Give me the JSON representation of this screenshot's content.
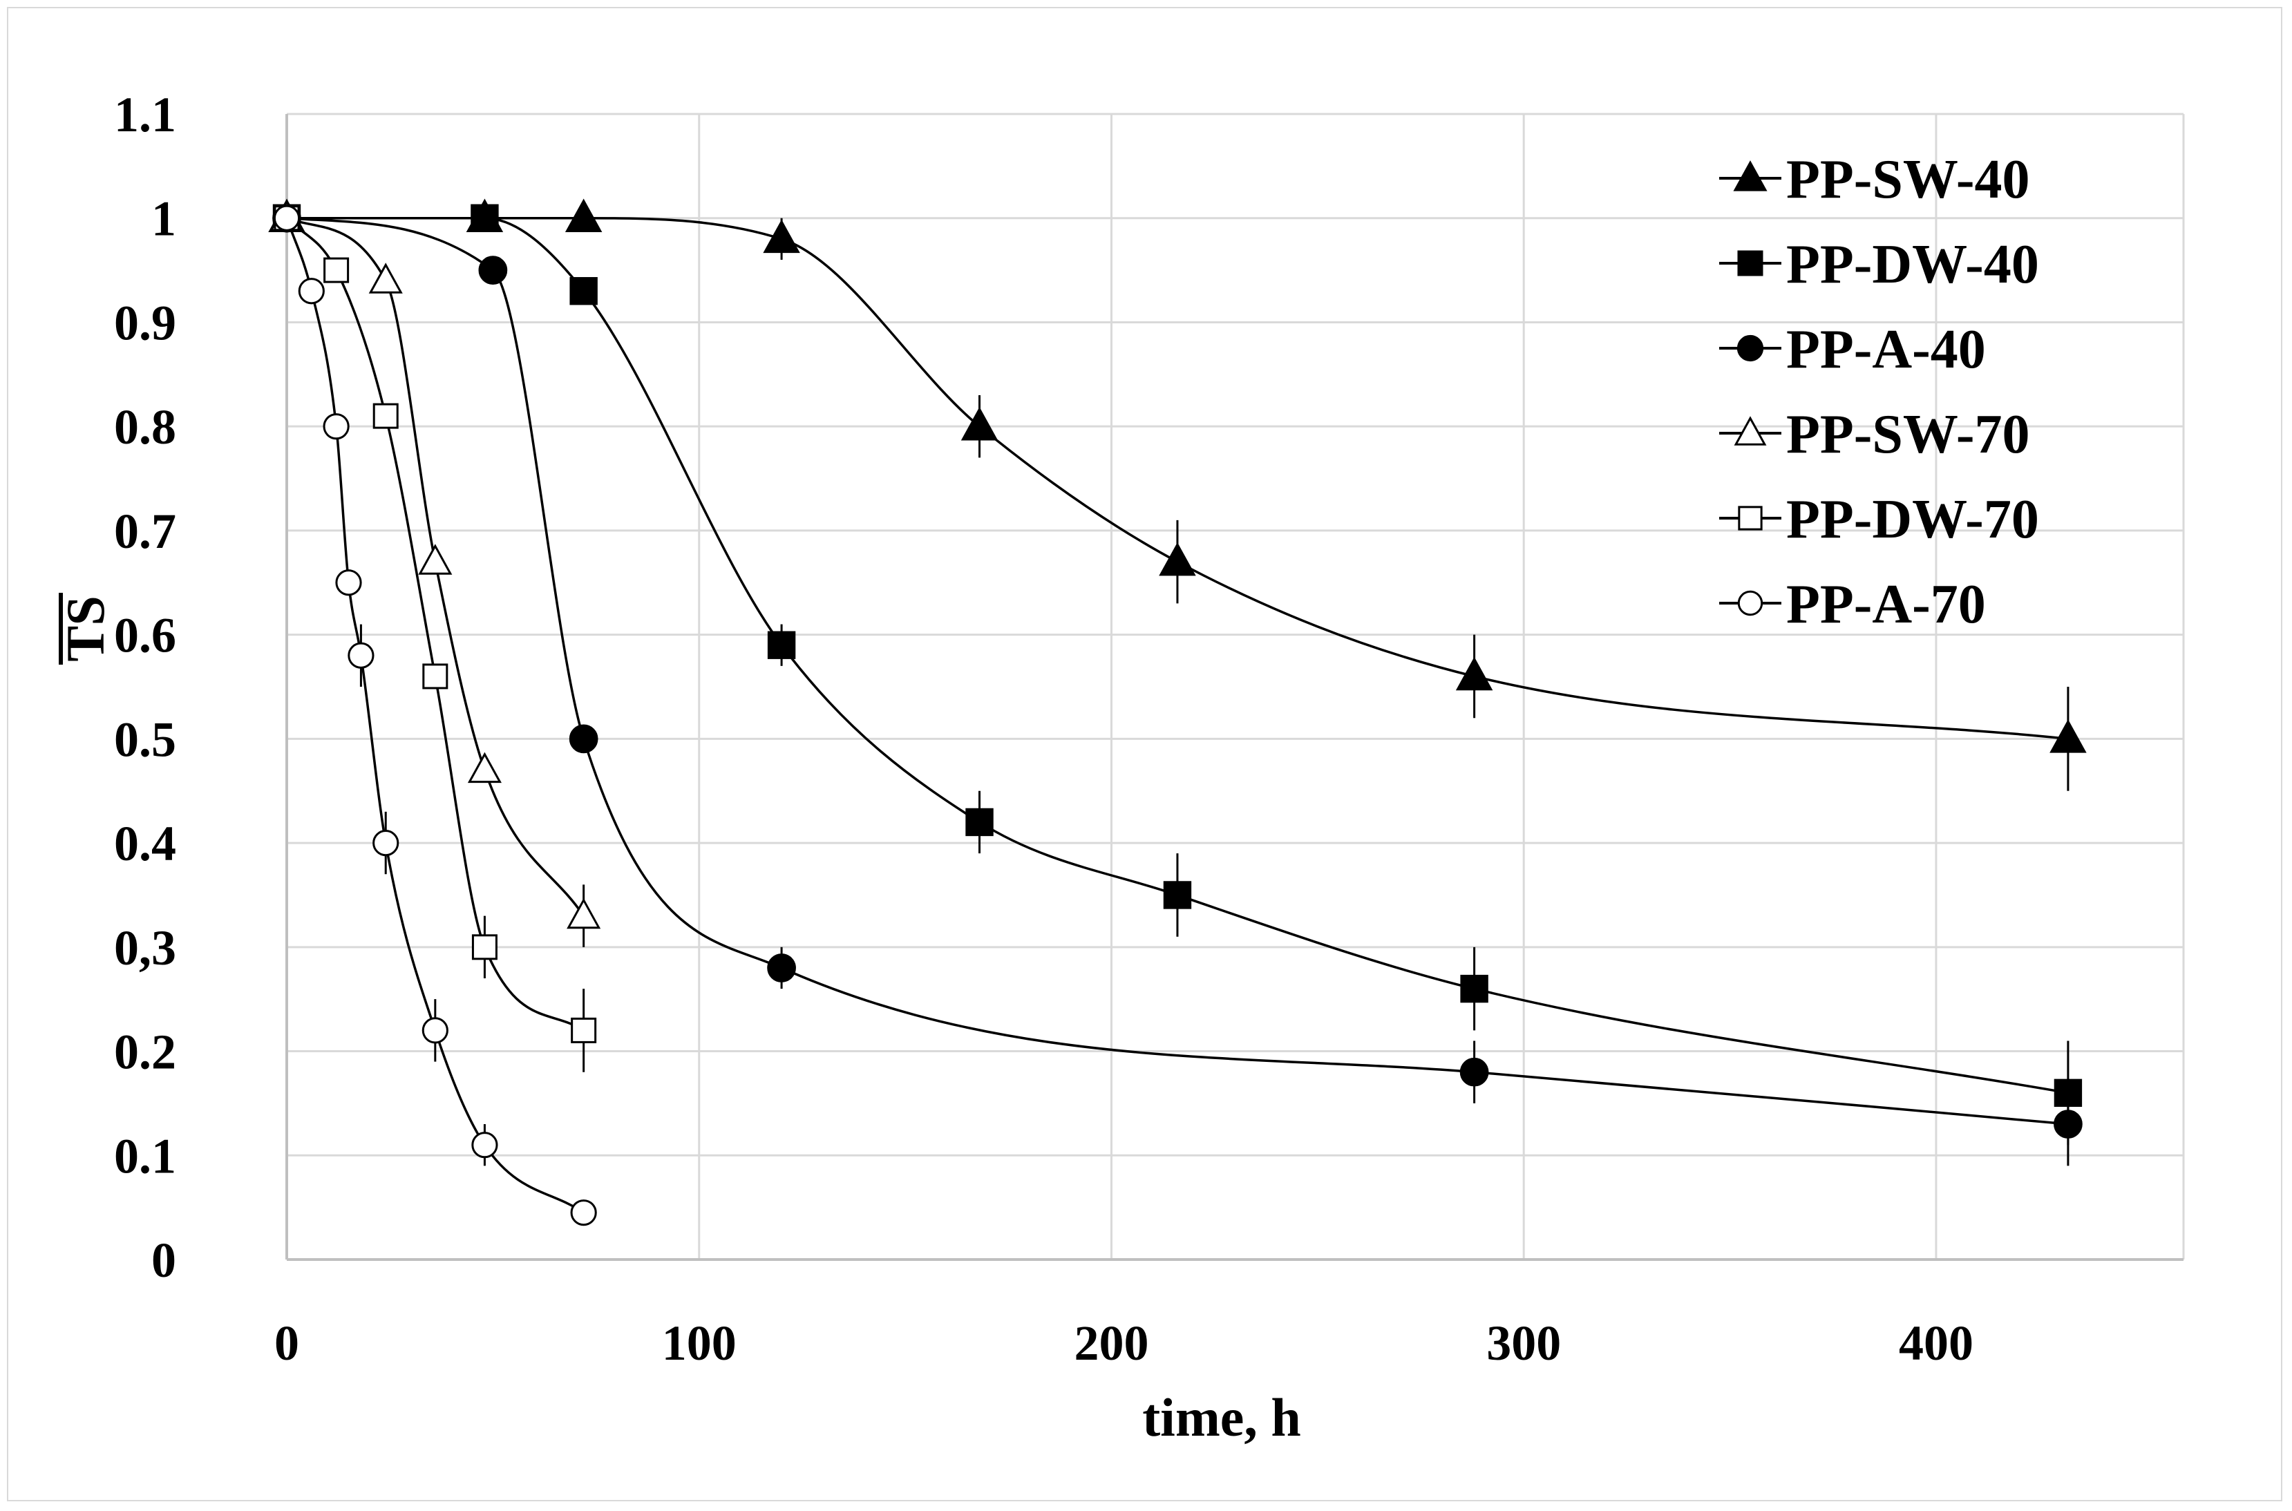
{
  "chart_data": {
    "type": "line",
    "title": "",
    "xlabel": "time, h",
    "ylabel": "TS",
    "xlim": [
      0,
      460
    ],
    "ylim": [
      0,
      1.1
    ],
    "xticks": [
      0,
      100,
      200,
      300,
      400
    ],
    "xtick_labels": [
      "0",
      "100",
      "200",
      "300",
      "400"
    ],
    "yticks": [
      0,
      0.1,
      0.2,
      0.3,
      0.4,
      0.5,
      0.6,
      0.7,
      0.8,
      0.9,
      1,
      1.1
    ],
    "ytick_labels": [
      "0",
      "0.1",
      "0.2",
      "0,3",
      "0.4",
      "0.5",
      "0.6",
      "0.7",
      "0.8",
      "0.9",
      "1",
      "1.1"
    ],
    "grid": true,
    "legend_position": "top-right",
    "series": [
      {
        "name": "PP-SW-40",
        "marker": "triangle",
        "filled": true,
        "x": [
          0,
          48,
          72,
          120,
          168,
          216,
          288,
          432
        ],
        "y": [
          1,
          1,
          1,
          0.98,
          0.8,
          0.67,
          0.56,
          0.5
        ],
        "err": [
          0,
          0,
          0,
          0.02,
          0.03,
          0.04,
          0.04,
          0.05
        ]
      },
      {
        "name": "PP-DW-40",
        "marker": "square",
        "filled": true,
        "x": [
          0,
          48,
          72,
          120,
          168,
          216,
          288,
          432
        ],
        "y": [
          1,
          1,
          0.93,
          0.59,
          0.42,
          0.35,
          0.26,
          0.16
        ],
        "err": [
          0,
          0,
          0,
          0.02,
          0.03,
          0.04,
          0.04,
          0.05
        ]
      },
      {
        "name": "PP-A-40",
        "marker": "circle",
        "filled": true,
        "x": [
          0,
          50,
          72,
          120,
          288,
          432
        ],
        "y": [
          1,
          0.95,
          0.5,
          0.28,
          0.18,
          0.13
        ],
        "err": [
          0,
          0,
          0,
          0.02,
          0.03,
          0.04
        ]
      },
      {
        "name": "PP-SW-70",
        "marker": "triangle",
        "filled": false,
        "x": [
          0,
          24,
          36,
          48,
          72
        ],
        "y": [
          1,
          0.94,
          0.67,
          0.47,
          0.33
        ],
        "err": [
          0,
          0,
          0,
          0,
          0.03
        ]
      },
      {
        "name": "PP-DW-70",
        "marker": "square",
        "filled": false,
        "x": [
          0,
          12,
          24,
          36,
          48,
          72
        ],
        "y": [
          1,
          0.95,
          0.81,
          0.56,
          0.3,
          0.22
        ],
        "err": [
          0,
          0,
          0,
          0,
          0.03,
          0.04
        ]
      },
      {
        "name": "PP-A-70",
        "marker": "circle",
        "filled": false,
        "x": [
          0,
          6,
          12,
          15,
          18,
          24,
          36,
          48,
          72
        ],
        "y": [
          1,
          0.93,
          0.8,
          0.65,
          0.58,
          0.4,
          0.22,
          0.11,
          0.045
        ],
        "err": [
          0,
          0,
          0,
          0,
          0.03,
          0.03,
          0.03,
          0.02,
          0
        ]
      }
    ]
  }
}
